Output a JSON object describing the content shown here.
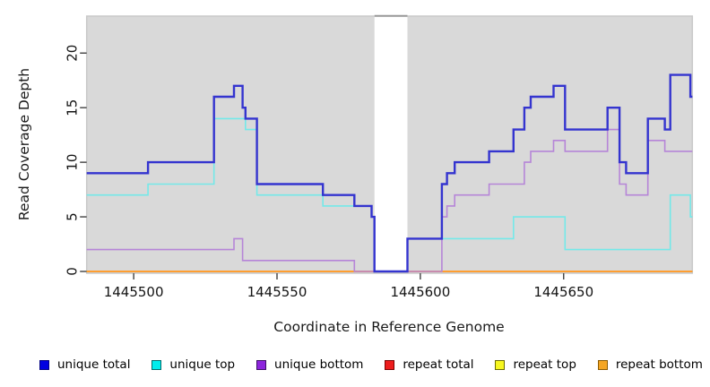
{
  "chart_data": {
    "type": "step-line",
    "title": "",
    "xlabel": "Coordinate in Reference Genome",
    "ylabel": "Read Coverage Depth",
    "x_ticks": [
      1445500,
      1445550,
      1445600,
      1445650
    ],
    "y_ticks": [
      0,
      5,
      10,
      15,
      20
    ],
    "x_domain": [
      1445483.6,
      1445694.9
    ],
    "y_domain": [
      -0.16,
      23.4
    ],
    "grid": false,
    "legend_position": "bottom",
    "colors": {
      "plot_bg": "#d9d9d9",
      "plot_border": "#c9c9c9",
      "gap_fill": "#ffffff",
      "gap_top_edge": "#979797",
      "tick": "#404040",
      "text": "#141414"
    },
    "gap_region": {
      "start": 1445584.0,
      "end": 1445595.5
    },
    "series": [
      {
        "name": "repeat total",
        "color": "#d40000",
        "width": 1.6,
        "points": [
          [
            1445483.6,
            0
          ]
        ]
      },
      {
        "name": "repeat top",
        "color": "#f5f500",
        "width": 1.6,
        "points": [
          [
            1445483.6,
            0
          ]
        ]
      },
      {
        "name": "repeat bottom",
        "color": "#ff9e30",
        "width": 2.0,
        "points": [
          [
            1445483.6,
            0
          ]
        ]
      },
      {
        "name": "unique bottom",
        "color": "#b685d8",
        "width": 1.6,
        "points": [
          [
            1445483.6,
            2
          ],
          [
            1445535,
            3
          ],
          [
            1445538,
            1
          ],
          [
            1445577,
            0
          ],
          [
            1445607.5,
            5
          ],
          [
            1445609.3,
            6
          ],
          [
            1445612,
            7
          ],
          [
            1445624,
            8
          ],
          [
            1445636.3,
            10
          ],
          [
            1445638.5,
            11
          ],
          [
            1445646.5,
            12
          ],
          [
            1445650.5,
            11
          ],
          [
            1445665.3,
            13
          ],
          [
            1445669.5,
            8
          ],
          [
            1445671.8,
            7
          ],
          [
            1445679.4,
            12
          ],
          [
            1445685.3,
            11
          ]
        ]
      },
      {
        "name": "unique top",
        "color": "#74e9e9",
        "width": 1.6,
        "points": [
          [
            1445483.6,
            7
          ],
          [
            1445505,
            8
          ],
          [
            1445528,
            14
          ],
          [
            1445539,
            13
          ],
          [
            1445543,
            7
          ],
          [
            1445566,
            6
          ],
          [
            1445583,
            5
          ],
          [
            1445584,
            0
          ],
          [
            1445595.5,
            3
          ],
          [
            1445632.5,
            5
          ],
          [
            1445650.5,
            2
          ],
          [
            1445687.2,
            7
          ],
          [
            1445694.2,
            5
          ]
        ]
      },
      {
        "name": "unique total",
        "color": "#3434cf",
        "width": 2.4,
        "points": [
          [
            1445483.6,
            9
          ],
          [
            1445505,
            10
          ],
          [
            1445528,
            16
          ],
          [
            1445535,
            17
          ],
          [
            1445538,
            15
          ],
          [
            1445539,
            14
          ],
          [
            1445543,
            8
          ],
          [
            1445566,
            7
          ],
          [
            1445577,
            6
          ],
          [
            1445583,
            5
          ],
          [
            1445584,
            0
          ],
          [
            1445595.5,
            3
          ],
          [
            1445607.5,
            8
          ],
          [
            1445609.3,
            9
          ],
          [
            1445612,
            10
          ],
          [
            1445624,
            11
          ],
          [
            1445632.5,
            13
          ],
          [
            1445636.3,
            15
          ],
          [
            1445638.5,
            16
          ],
          [
            1445646.5,
            17
          ],
          [
            1445650.5,
            13
          ],
          [
            1445665.3,
            15
          ],
          [
            1445669.5,
            10
          ],
          [
            1445671.8,
            9
          ],
          [
            1445679.4,
            14
          ],
          [
            1445685.3,
            13
          ],
          [
            1445687.2,
            18
          ],
          [
            1445694.2,
            16
          ]
        ]
      }
    ]
  },
  "legend": {
    "items": [
      {
        "label": "unique total",
        "fill": "#0000e1",
        "border": "#000082"
      },
      {
        "label": "unique top",
        "fill": "#00eded",
        "border": "#006b6b"
      },
      {
        "label": "unique bottom",
        "fill": "#8d25dd",
        "border": "#3d0f66"
      },
      {
        "label": "repeat total",
        "fill": "#ed1c1c",
        "border": "#7a0000"
      },
      {
        "label": "repeat top",
        "fill": "#f7f71f",
        "border": "#6b6b00"
      },
      {
        "label": "repeat bottom",
        "fill": "#f5a623",
        "border": "#8a5a00"
      }
    ]
  }
}
